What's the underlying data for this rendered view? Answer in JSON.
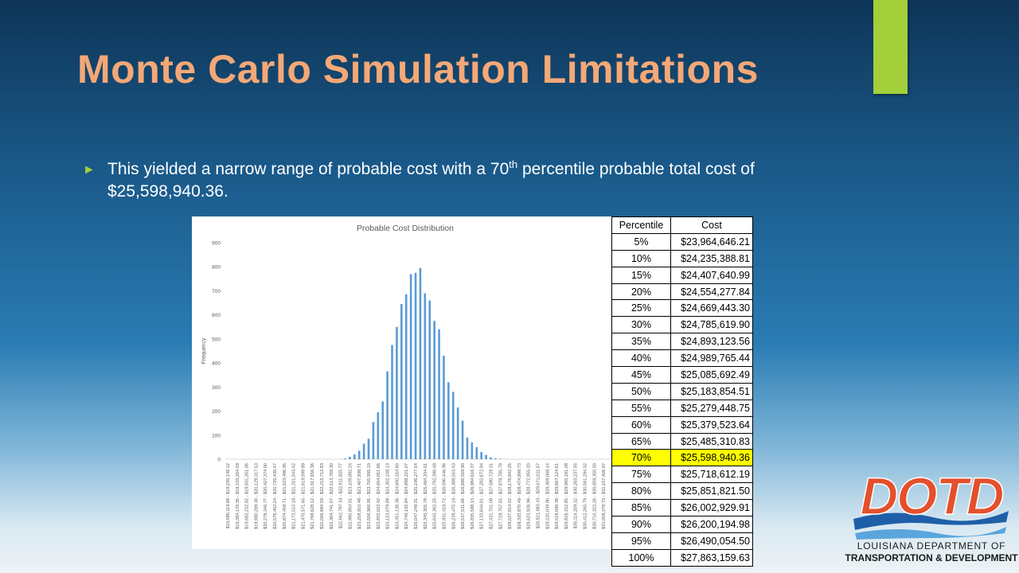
{
  "slide": {
    "title": "Monte Carlo Simulation Limitations",
    "bullet": {
      "before": "This yielded a narrow range of probable cost with a 70",
      "sup": "th",
      "after": " percentile probable total cost of $25,598,940.36."
    }
  },
  "chart_data": {
    "type": "bar",
    "title": "Probable Cost Distribution",
    "y_label": "Frequency",
    "color": "#5b9bd5",
    "categories": [
      "$19,086,119.88 - $19,235,148.12",
      null,
      "$19,384,176.35 - $19,533,204.59",
      null,
      "$19,682,232.82 - $19,831,261.06",
      null,
      "$19,980,289.30 - $20,129,317.53",
      null,
      "$20,278,345.77 - $20,427,374.00",
      null,
      "$20,576,402.24 - $20,725,430.47",
      null,
      "$20,874,458.71 - $21,023,486.95",
      null,
      "$21,172,515.18 - $21,321,543.42",
      null,
      "$21,470,571.65 - $21,619,599.89",
      null,
      "$21,768,628.12 - $21,917,656.36",
      null,
      "$22,066,684.59 - $22,215,712.83",
      null,
      "$22,364,741.07 - $22,513,769.30",
      null,
      "$22,662,797.54 - $22,811,825.77",
      null,
      "$22,960,854.01 - $23,109,882.24",
      null,
      "$23,258,910.48 - $23,407,938.71",
      null,
      "$23,556,966.95 - $23,705,995.19",
      null,
      "$23,855,023.42 - $24,004,051.66",
      null,
      "$24,153,079.89 - $24,302,108.13",
      null,
      "$24,451,136.36 - $24,600,164.60",
      null,
      "$24,749,192.84 - $24,898,221.07",
      null,
      "$25,047,249.31 - $25,196,277.54",
      null,
      "$25,345,305.78 - $25,494,334.01",
      null,
      "$25,643,362.25 - $25,792,390.48",
      null,
      "$25,941,418.72 - $26,090,446.96",
      null,
      "$26,239,475.19 - $26,388,503.43",
      null,
      "$26,537,531.66 - $26,686,559.90",
      null,
      "$26,835,588.13 - $26,984,616.37",
      null,
      "$27,133,644.61 - $27,282,672.84",
      null,
      "$27,431,701.08 - $27,580,729.31",
      null,
      "$27,729,757.55 - $27,878,785.78",
      null,
      "$28,027,814.02 - $28,176,842.25",
      null,
      "$28,325,870.49 - $28,474,898.73",
      null,
      "$28,623,926.96 - $28,772,955.20",
      null,
      "$28,921,983.43 - $29,071,011.67",
      null,
      "$29,220,039.90 - $29,369,068.14",
      null,
      "$29,518,096.38 - $29,667,124.61",
      null,
      "$29,816,152.85 - $29,965,181.08",
      null,
      "$30,114,209.32 - $30,263,237.55",
      null,
      "$30,412,265.79 - $30,561,294.02",
      null,
      "$30,710,322.26 - $30,859,350.50",
      null,
      "$31,008,378.73 - $31,157,406.97",
      null
    ],
    "values": [
      0,
      0,
      0,
      0,
      0,
      0,
      0,
      0,
      0,
      0,
      0,
      0,
      0,
      0,
      0,
      0,
      0,
      0,
      0,
      0,
      0,
      0,
      0,
      0,
      0,
      3,
      10,
      20,
      35,
      65,
      85,
      155,
      195,
      240,
      365,
      475,
      550,
      645,
      685,
      770,
      775,
      795,
      690,
      660,
      575,
      540,
      430,
      320,
      280,
      215,
      160,
      90,
      70,
      50,
      30,
      18,
      8,
      4,
      2,
      0,
      0,
      0,
      0,
      0,
      0,
      0,
      0,
      0,
      0,
      0,
      0,
      0,
      0,
      0,
      0,
      0,
      0,
      0,
      0,
      0,
      0,
      0
    ],
    "ylim": [
      0,
      900
    ],
    "yticks": [
      0,
      100,
      200,
      300,
      400,
      500,
      600,
      700,
      800,
      900
    ],
    "grid": false
  },
  "table": {
    "header": [
      "Percentile",
      "Cost"
    ],
    "rows": [
      [
        "5%",
        "$23,964,646.21"
      ],
      [
        "10%",
        "$24,235,388.81"
      ],
      [
        "15%",
        "$24,407,640.99"
      ],
      [
        "20%",
        "$24,554,277.84"
      ],
      [
        "25%",
        "$24,669,443.30"
      ],
      [
        "30%",
        "$24,785,619.90"
      ],
      [
        "35%",
        "$24,893,123.56"
      ],
      [
        "40%",
        "$24,989,765.44"
      ],
      [
        "45%",
        "$25,085,692.49"
      ],
      [
        "50%",
        "$25,183,854.51"
      ],
      [
        "55%",
        "$25,279,448.75"
      ],
      [
        "60%",
        "$25,379,523.64"
      ],
      [
        "65%",
        "$25,485,310.83"
      ],
      [
        "70%",
        "$25,598,940.36"
      ],
      [
        "75%",
        "$25,718,612.19"
      ],
      [
        "80%",
        "$25,851,821.50"
      ],
      [
        "85%",
        "$26,002,929.91"
      ],
      [
        "90%",
        "$26,200,194.98"
      ],
      [
        "95%",
        "$26,490,054.50"
      ],
      [
        "100%",
        "$27,863,159.63"
      ]
    ],
    "highlight": "70%"
  },
  "logo": {
    "mark": "DOTD",
    "line1": "LOUISIANA DEPARTMENT OF",
    "line2": "TRANSPORTATION & DEVELOPMENT"
  }
}
